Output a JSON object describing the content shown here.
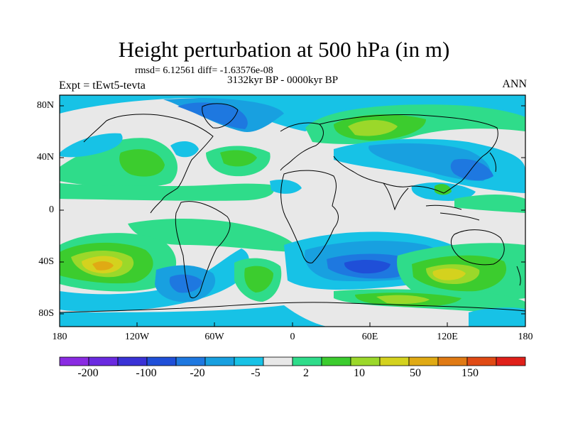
{
  "title": "Height perturbation at 500 hPa (in m)",
  "subtitle_stats": "rmsd= 6.12561  diff= -1.63576e-08",
  "period": "3132kyr BP - 0000kyr BP",
  "experiment": "Expt = tEwt5-tevta",
  "season": "ANN",
  "lat_ticks": [
    "80N",
    "40N",
    "0",
    "40S",
    "80S"
  ],
  "lon_ticks": [
    "180",
    "120W",
    "60W",
    "0",
    "60E",
    "120E",
    "180"
  ],
  "colorbar": {
    "labels": [
      "-200",
      "-100",
      "-20",
      "-5",
      "2",
      "10",
      "50",
      "150"
    ],
    "colors": [
      "#8a2be2",
      "#6a2ae0",
      "#3a32d6",
      "#1f4fd8",
      "#1e78e0",
      "#18a0e0",
      "#17c2e6",
      "#e8e8e8",
      "#2fdc8a",
      "#3ccc2e",
      "#9bd82a",
      "#d4d21e",
      "#e0aa14",
      "#e07a14",
      "#e04a14",
      "#e0201a"
    ]
  },
  "colors": {
    "neutral": "#e8e8e8",
    "cyan": "#17c2e6",
    "sky": "#18a0e0",
    "blue": "#1e78e0",
    "mint": "#2fdc8a",
    "green": "#3ccc2e",
    "lime": "#9bd82a",
    "yellow": "#d4d21e",
    "orange": "#e0aa14"
  }
}
